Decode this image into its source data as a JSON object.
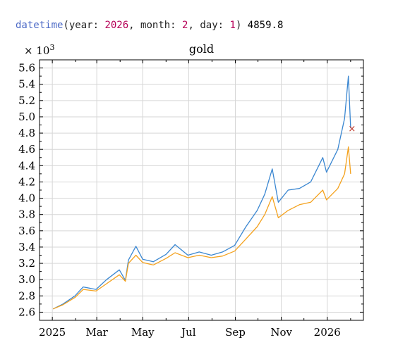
{
  "code_cell": {
    "fn_name": "datetime",
    "open_paren": "(",
    "k1": "year: ",
    "v1": "2026",
    "sep1": ", ",
    "k2": "month: ",
    "v2": "2",
    "sep2": ", ",
    "k3": "day: ",
    "v3": "1",
    "close_paren": ")",
    "result": " 4859.8"
  },
  "chart_data": {
    "type": "line",
    "title": "gold",
    "scale_label": "× 10",
    "scale_exponent": "3",
    "xlabel": "",
    "ylabel": "",
    "x_axis_type": "date",
    "xlim": [
      "2024-12-15",
      "2026-02-18"
    ],
    "ylim": [
      2.5,
      5.7
    ],
    "y_ticks": [
      2.6,
      2.8,
      3.0,
      3.2,
      3.4,
      3.6,
      3.8,
      4.0,
      4.2,
      4.4,
      4.6,
      4.8,
      5.0,
      5.2,
      5.4,
      5.6
    ],
    "y_tick_labels": [
      "2.6",
      "2.8",
      "3.0",
      "3.2",
      "3.4",
      "3.6",
      "3.8",
      "4.0",
      "4.2",
      "4.4",
      "4.6",
      "4.8",
      "5.0",
      "5.2",
      "5.4",
      "5.6"
    ],
    "x_ticks": [
      "2025-01-01",
      "2025-03-01",
      "2025-05-01",
      "2025-07-01",
      "2025-09-01",
      "2025-11-01",
      "2026-01-01"
    ],
    "x_tick_labels": [
      "2025",
      "Mar",
      "May",
      "Jul",
      "Sep",
      "Nov",
      "2026"
    ],
    "grid": true,
    "legend": "none",
    "series": [
      {
        "color": "#3b87d1",
        "points": [
          [
            "2025-01-02",
            2.64
          ],
          [
            "2025-01-15",
            2.7
          ],
          [
            "2025-01-31",
            2.8
          ],
          [
            "2025-02-11",
            2.91
          ],
          [
            "2025-02-28",
            2.88
          ],
          [
            "2025-03-14",
            3.0
          ],
          [
            "2025-03-31",
            3.12
          ],
          [
            "2025-04-08",
            2.99
          ],
          [
            "2025-04-12",
            3.24
          ],
          [
            "2025-04-22",
            3.41
          ],
          [
            "2025-05-01",
            3.25
          ],
          [
            "2025-05-15",
            3.22
          ],
          [
            "2025-06-01",
            3.31
          ],
          [
            "2025-06-13",
            3.43
          ],
          [
            "2025-06-30",
            3.3
          ],
          [
            "2025-07-15",
            3.34
          ],
          [
            "2025-07-31",
            3.3
          ],
          [
            "2025-08-15",
            3.34
          ],
          [
            "2025-08-31",
            3.42
          ],
          [
            "2025-09-15",
            3.65
          ],
          [
            "2025-09-30",
            3.85
          ],
          [
            "2025-10-10",
            4.05
          ],
          [
            "2025-10-20",
            4.36
          ],
          [
            "2025-10-28",
            3.95
          ],
          [
            "2025-11-10",
            4.1
          ],
          [
            "2025-11-25",
            4.12
          ],
          [
            "2025-12-10",
            4.2
          ],
          [
            "2025-12-26",
            4.5
          ],
          [
            "2025-12-31",
            4.32
          ],
          [
            "2026-01-15",
            4.6
          ],
          [
            "2026-01-24",
            4.98
          ],
          [
            "2026-01-29",
            5.5
          ],
          [
            "2026-02-01",
            4.86
          ]
        ]
      },
      {
        "color": "#f4a21e",
        "points": [
          [
            "2025-01-02",
            2.64
          ],
          [
            "2025-01-15",
            2.69
          ],
          [
            "2025-01-31",
            2.78
          ],
          [
            "2025-02-11",
            2.88
          ],
          [
            "2025-02-28",
            2.86
          ],
          [
            "2025-03-14",
            2.95
          ],
          [
            "2025-03-31",
            3.06
          ],
          [
            "2025-04-08",
            2.98
          ],
          [
            "2025-04-12",
            3.2
          ],
          [
            "2025-04-22",
            3.3
          ],
          [
            "2025-05-01",
            3.21
          ],
          [
            "2025-05-15",
            3.18
          ],
          [
            "2025-06-01",
            3.26
          ],
          [
            "2025-06-13",
            3.33
          ],
          [
            "2025-06-30",
            3.27
          ],
          [
            "2025-07-15",
            3.3
          ],
          [
            "2025-07-31",
            3.27
          ],
          [
            "2025-08-15",
            3.29
          ],
          [
            "2025-08-31",
            3.35
          ],
          [
            "2025-09-15",
            3.5
          ],
          [
            "2025-09-30",
            3.65
          ],
          [
            "2025-10-10",
            3.8
          ],
          [
            "2025-10-20",
            4.02
          ],
          [
            "2025-10-28",
            3.76
          ],
          [
            "2025-11-10",
            3.85
          ],
          [
            "2025-11-25",
            3.92
          ],
          [
            "2025-12-10",
            3.95
          ],
          [
            "2025-12-26",
            4.1
          ],
          [
            "2025-12-31",
            3.98
          ],
          [
            "2026-01-15",
            4.12
          ],
          [
            "2026-01-24",
            4.3
          ],
          [
            "2026-01-29",
            4.63
          ],
          [
            "2026-02-01",
            4.3
          ]
        ]
      }
    ],
    "marker": {
      "x": "2026-02-01",
      "y": 4.8598,
      "symbol": "×",
      "color": "#c0392b"
    }
  }
}
